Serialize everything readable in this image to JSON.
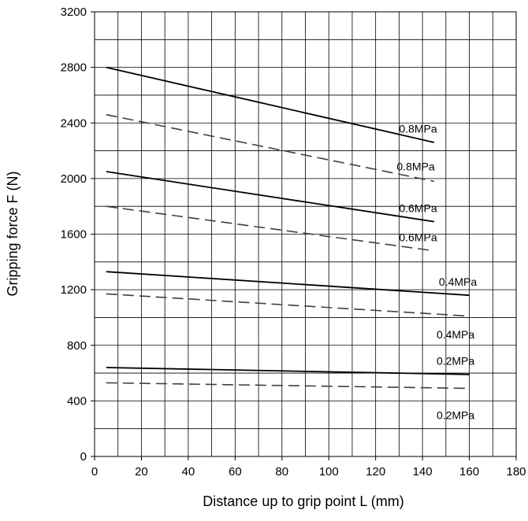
{
  "chart_data": {
    "type": "line",
    "title": "",
    "xlabel": "Distance up to grip point L (mm)",
    "ylabel": "Gripping force F (N)",
    "xlim": [
      0,
      180
    ],
    "ylim": [
      0,
      3200
    ],
    "x_ticks": [
      0,
      20,
      40,
      60,
      80,
      100,
      120,
      140,
      160,
      180
    ],
    "y_ticks": [
      0,
      400,
      800,
      1200,
      1600,
      2000,
      2400,
      2800,
      3200
    ],
    "x_tick_labels": [
      "0",
      "20",
      "40",
      "60",
      "80",
      "100",
      "120",
      "140",
      "160",
      "180"
    ],
    "y_tick_labels": [
      "0",
      "400",
      "800",
      "1200",
      "1600",
      "2000",
      "2400",
      "2800",
      "3200"
    ],
    "grid": true,
    "grid_x_step": 10,
    "grid_y_step": 200,
    "colors": {
      "solid": "#000000",
      "dashed": "#404040",
      "grid": "#000000"
    },
    "series": [
      {
        "label_text": "0.8MPa",
        "style": "solid",
        "x": [
          5,
          145
        ],
        "y": [
          2800,
          2260
        ],
        "label_at": [
          130,
          2330
        ]
      },
      {
        "label_text": "0.8MPa",
        "style": "dashed",
        "x": [
          5,
          145
        ],
        "y": [
          2460,
          1980
        ],
        "label_at": [
          129,
          2060
        ]
      },
      {
        "label_text": "0.6MPa",
        "style": "solid",
        "x": [
          5,
          145
        ],
        "y": [
          2050,
          1690
        ],
        "label_at": [
          130,
          1760
        ]
      },
      {
        "label_text": "0.6MPa",
        "style": "dashed",
        "x": [
          5,
          145
        ],
        "y": [
          1800,
          1480
        ],
        "label_at": [
          130,
          1550
        ]
      },
      {
        "label_text": "0.4MPa",
        "style": "solid",
        "x": [
          5,
          160
        ],
        "y": [
          1330,
          1160
        ],
        "label_at": [
          147,
          1230
        ]
      },
      {
        "label_text": "0.4MPa",
        "style": "dashed",
        "x": [
          5,
          160
        ],
        "y": [
          1170,
          1010
        ],
        "label_at": [
          146,
          850
        ]
      },
      {
        "label_text": "0.2MPa",
        "style": "solid",
        "x": [
          5,
          160
        ],
        "y": [
          640,
          590
        ],
        "label_at": [
          146,
          660
        ]
      },
      {
        "label_text": "0.2MPa",
        "style": "dashed",
        "x": [
          5,
          160
        ],
        "y": [
          530,
          490
        ],
        "label_at": [
          146,
          270
        ]
      }
    ]
  }
}
